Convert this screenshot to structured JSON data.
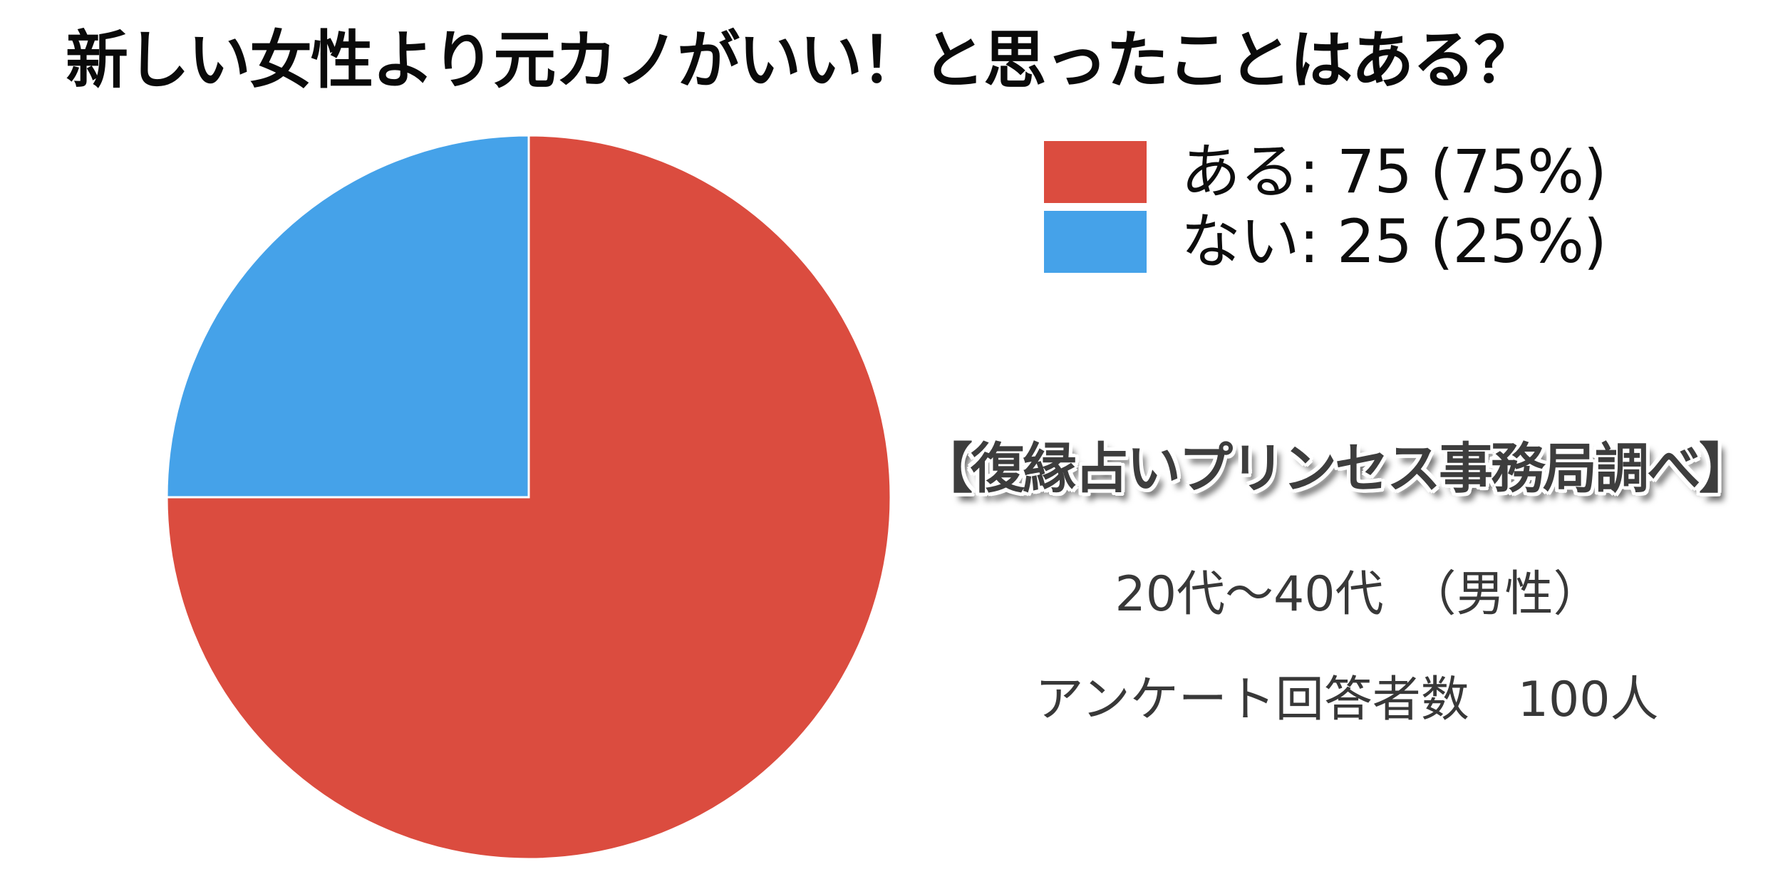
{
  "title": "新しい女性より元カノがいい！と思ったことはある？",
  "chart_data": {
    "type": "pie",
    "title": "新しい女性より元カノがいい！と思ったことはある？",
    "labels": [
      "ある",
      "ない"
    ],
    "values": [
      75,
      25
    ],
    "total": 100,
    "percentages": [
      "75%",
      "25%"
    ],
    "colors": [
      "#db4c3f",
      "#45a2e9"
    ],
    "start_angle_deg": -90,
    "direction": "clockwise",
    "legend_position": "right",
    "slice_border_color": "#ffffff"
  },
  "legend": {
    "items": [
      {
        "label": "ある: 75 (75%)",
        "color": "#db4c3f"
      },
      {
        "label": "ない: 25 (25%)",
        "color": "#45a2e9"
      }
    ]
  },
  "annotations": {
    "source": "【復縁占いプリンセス事務局調べ】",
    "demographic": "20代～40代　（男性）",
    "respondents": "アンケート回答者数　100人"
  }
}
